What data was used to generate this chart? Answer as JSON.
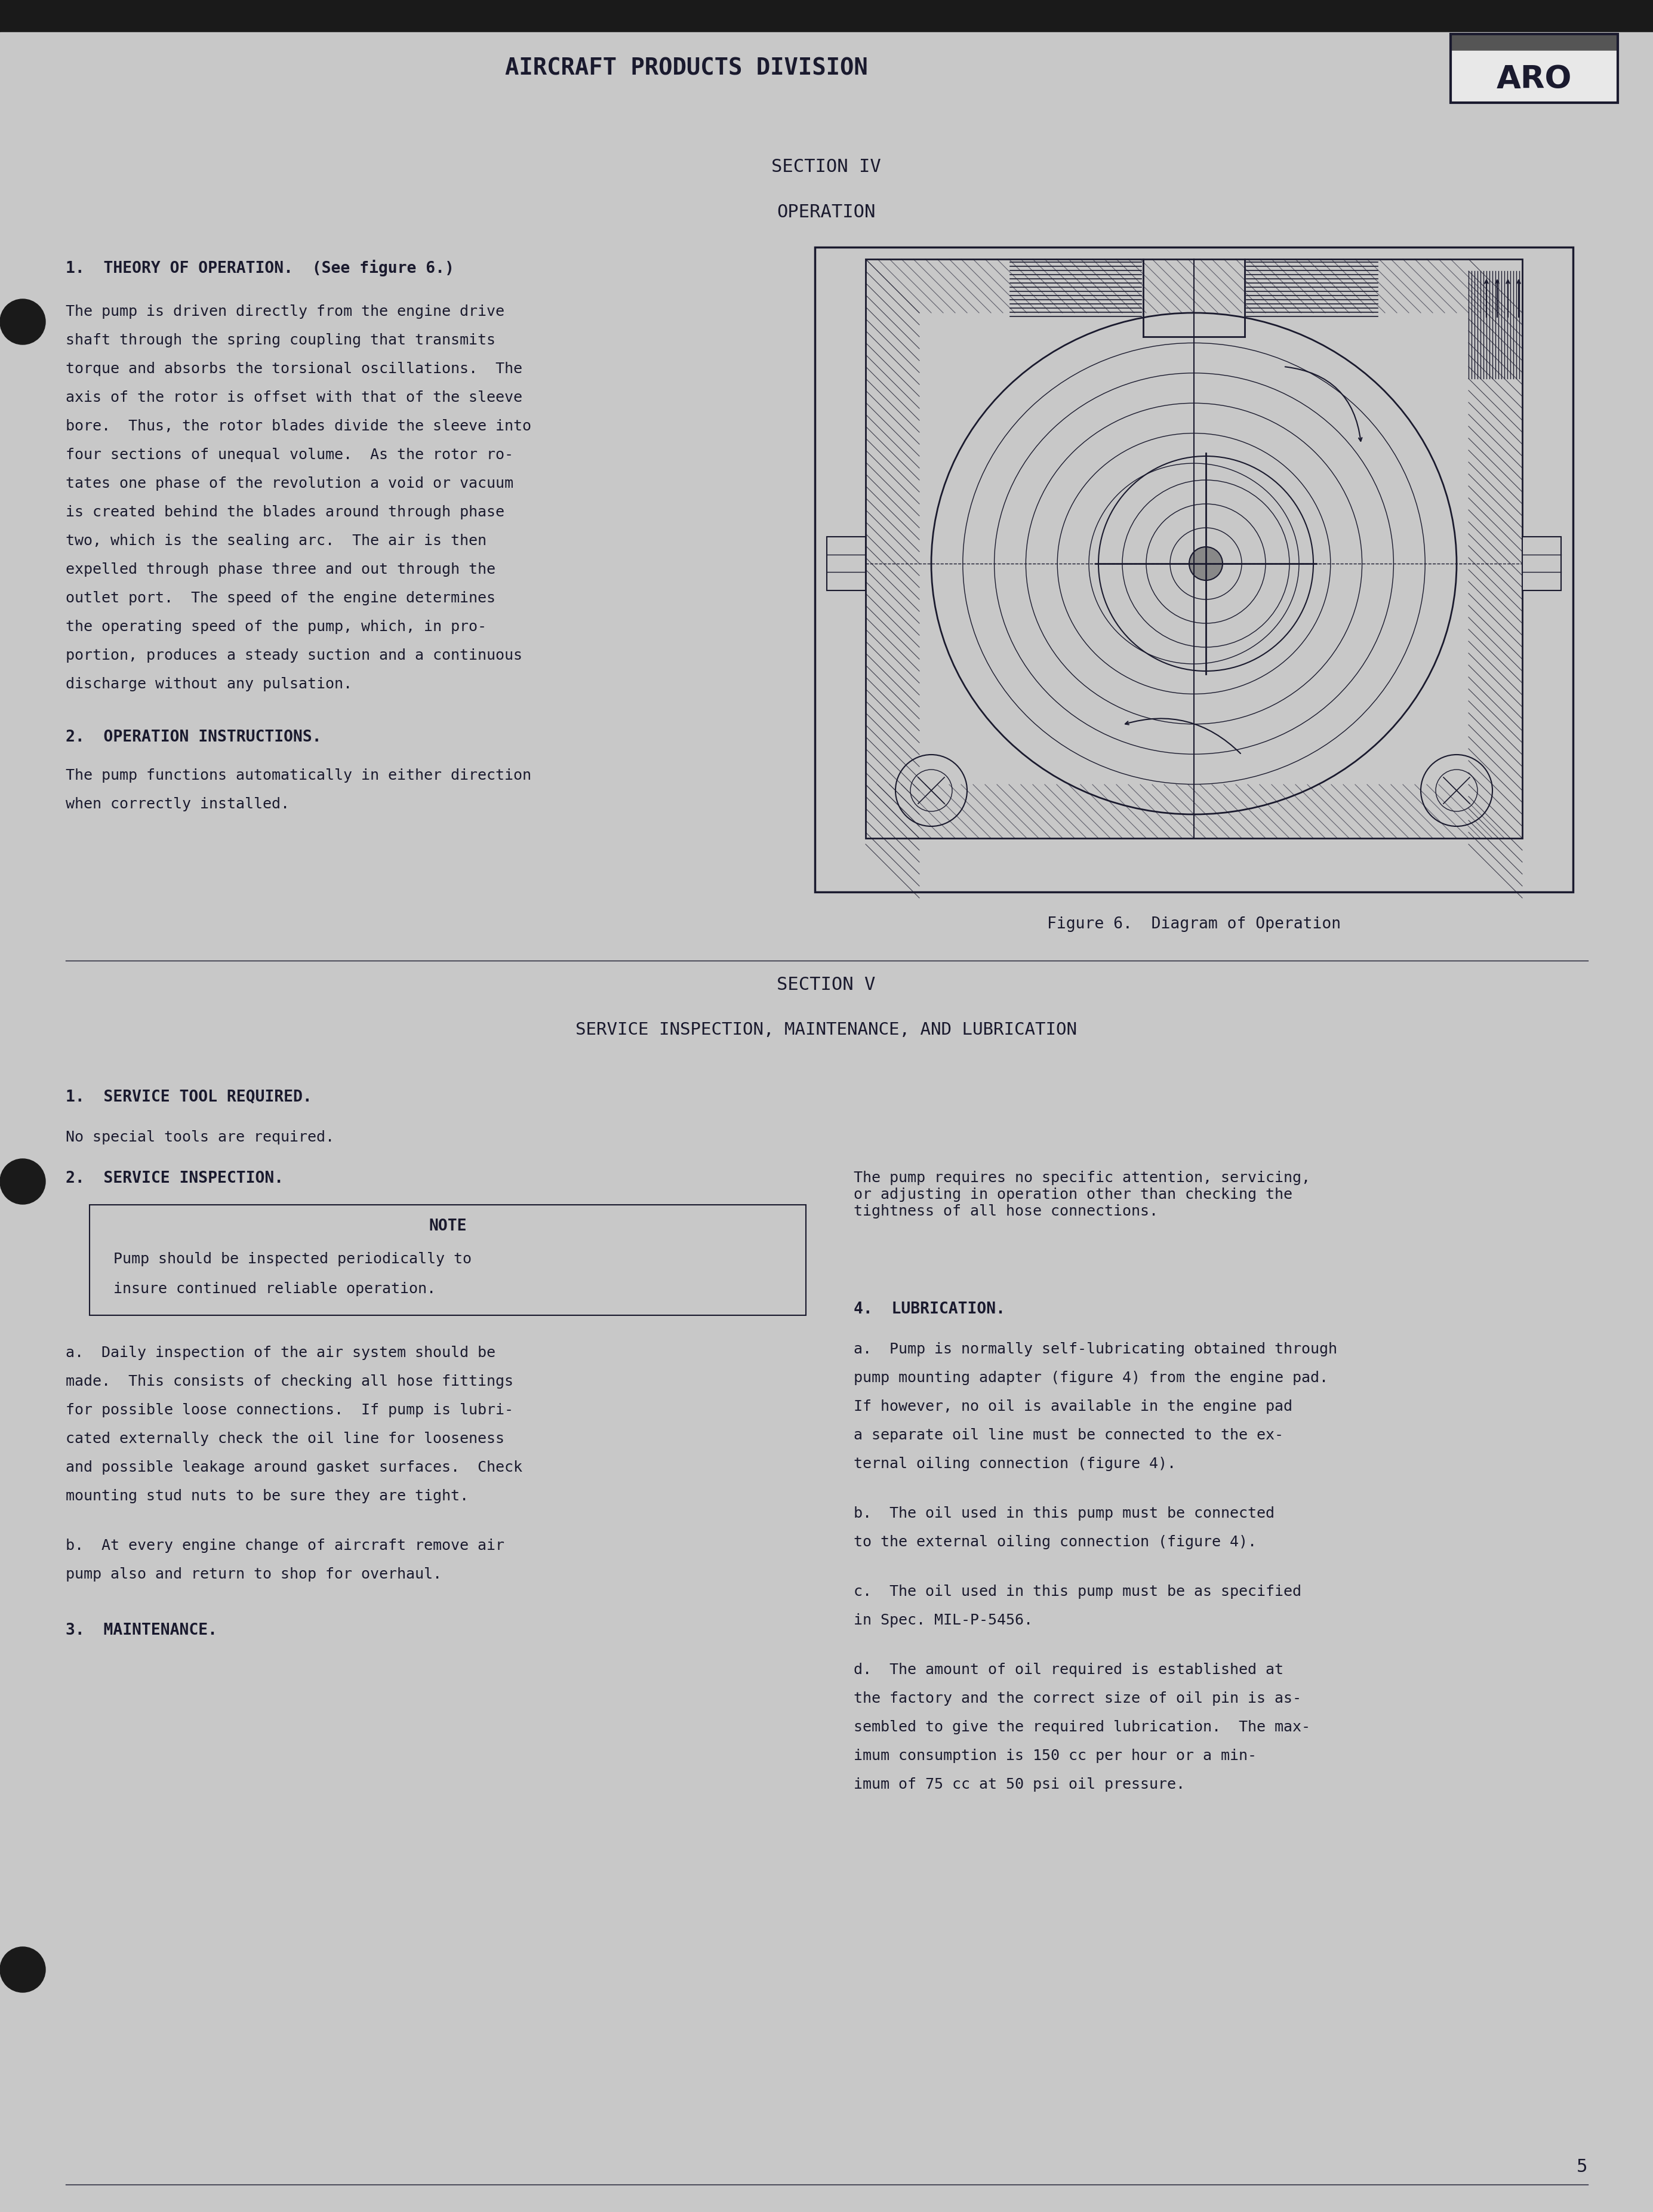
{
  "bg_color": "#c8c8c8",
  "text_color": "#1a1a2e",
  "header_text": "AIRCRAFT PRODUCTS DIVISION",
  "logo_text": "ARO",
  "section4_title": "SECTION IV",
  "section4_subtitle": "OPERATION",
  "theory_heading": "1.  THEORY OF OPERATION.  (See figure 6.)",
  "theory_body": "The pump is driven directly from the engine drive\nshaft through the spring coupling that transmits\ntorque and absorbs the torsional oscillations.  The\naxis of the rotor is offset with that of the sleeve\nbore.  Thus, the rotor blades divide the sleeve into\nfour sections of unequal volume.  As the rotor ro-\ntates one phase of the revolution a void or vacuum\nis created behind the blades around through phase\ntwo, which is the sealing arc.  The air is then\nexpelled through phase three and out through the\noutlet port.  The speed of the engine determines\nthe operating speed of the pump, which, in pro-\nportion, produces a steady suction and a continuous\ndischarge without any pulsation.",
  "operation_heading": "2.  OPERATION INSTRUCTIONS.",
  "operation_body": "The pump functions automatically in either direction\nwhen correctly installed.",
  "figure_caption": "Figure 6.  Diagram of Operation",
  "section5_title": "SECTION V",
  "section5_subtitle": "SERVICE INSPECTION, MAINTENANCE, AND LUBRICATION",
  "service_tool_heading": "1.  SERVICE TOOL REQUIRED.",
  "service_tool_body": "No special tools are required.",
  "service_insp_heading": "2.  SERVICE INSPECTION.",
  "note_heading": "NOTE",
  "note_body": "Pump should be inspected periodically to\ninsure continued reliable operation.",
  "service_insp_a": "a.  Daily inspection of the air system should be\nmade.  This consists of checking all hose fittings\nfor possible loose connections.  If pump is lubri-\ncated externally check the oil line for looseness\nand possible leakage around gasket surfaces.  Check\nmounting stud nuts to be sure they are tight.",
  "service_insp_b": "b.  At every engine change of aircraft remove air\npump also and return to shop for overhaul.",
  "maintenance_heading": "3.  MAINTENANCE.",
  "right_col_3": "The pump requires no specific attention, servicing,\nor adjusting in operation other than checking the\ntightness of all hose connections.",
  "lubrication_heading": "4.  LUBRICATION.",
  "lub_a": "a.  Pump is normally self-lubricating obtained through\npump mounting adapter (figure 4) from the engine pad.\nIf however, no oil is available in the engine pad\na separate oil line must be connected to the ex-\nternal oiling connection (figure 4).",
  "lub_b": "b.  The oil used in this pump must be connected\nto the external oiling connection (figure 4).",
  "lub_c": "c.  The oil used in this pump must be as specified\nin Spec. MIL-P-5456.",
  "lub_d": "d.  The amount of oil required is established at\nthe factory and the correct size of oil pin is as-\nsembled to give the required lubrication.  The max-\nimum consumption is 150 cc per hour or a min-\nimum of 75 cc at 50 psi oil pressure.",
  "page_num": "5"
}
